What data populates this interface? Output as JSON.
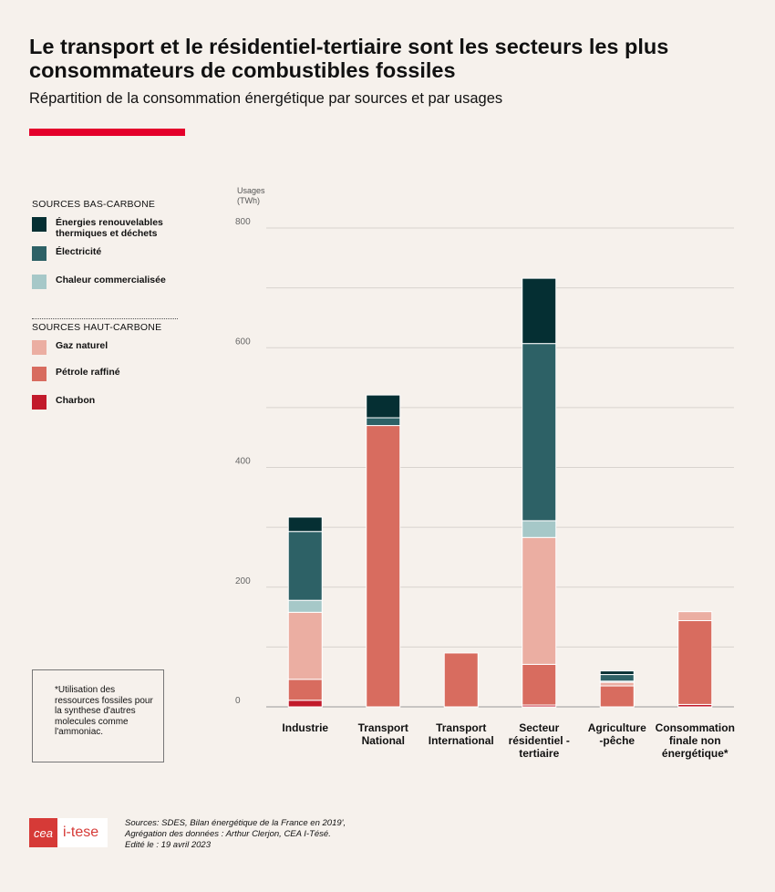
{
  "header": {
    "title": "Le transport et le résidentiel-tertiaire sont les secteurs les plus consommateurs de combustibles fossiles",
    "subtitle": "Répartition de la consommation énergétique par sources et par usages"
  },
  "legend": {
    "low_carbon_title": "SOURCES BAS-CARBONE",
    "high_carbon_title": "SOURCES HAUT-CARBONE",
    "items": [
      {
        "label": "Énergies renouvelables thermiques et déchets",
        "color": "#052f33",
        "icon": "square-swatch"
      },
      {
        "label": "Électricité",
        "color": "#2d6166",
        "icon": "square-swatch"
      },
      {
        "label": "Chaleur commercialisée",
        "color": "#a6c8c8",
        "icon": "square-swatch"
      },
      {
        "label": "Gaz naturel",
        "color": "#ebaea2",
        "icon": "square-swatch"
      },
      {
        "label": "Pétrole raffiné",
        "color": "#d86c5f",
        "icon": "square-swatch"
      },
      {
        "label": "Charbon",
        "color": "#c21a2b",
        "icon": "square-swatch"
      }
    ]
  },
  "note": "*Utilisation des ressources fossiles pour la synthese d'autres molecules comme l'ammoniac.",
  "footer": {
    "logo_cea": "cea",
    "logo_itese": "i-tese",
    "sources_line1": "Sources: SDES, Bilan énergétique de la France en 2019',",
    "sources_line2": "Agrégation des données : Arthur Clerjon, CEA I-Tésé.",
    "sources_line3": "Edité le : 19 avril 2023"
  },
  "accent_color": "#e4002b",
  "chart_data": {
    "type": "bar",
    "stacked": true,
    "ylabel": "Usages (TWh)",
    "ylim": [
      0,
      800
    ],
    "yticks": [
      0,
      200,
      400,
      600,
      800
    ],
    "grid": true,
    "legend_position": "left",
    "categories": [
      "Industrie",
      "Transport National",
      "Transport International",
      "Secteur résidentiel - tertiaire",
      "Agriculture -pêche",
      "Consommation finale non énergétique*"
    ],
    "series": [
      {
        "name": "Charbon",
        "color": "#c21a2b",
        "values": [
          11,
          0,
          0,
          3,
          0,
          4
        ]
      },
      {
        "name": "Pétrole raffiné",
        "color": "#d86c5f",
        "values": [
          35,
          470,
          90,
          68,
          35,
          140
        ]
      },
      {
        "name": "Gaz naturel",
        "color": "#ebaea2",
        "values": [
          112,
          0,
          0,
          212,
          6,
          15
        ]
      },
      {
        "name": "Chaleur commercialisée",
        "color": "#a6c8c8",
        "values": [
          20,
          0,
          0,
          28,
          2,
          0
        ]
      },
      {
        "name": "Électricité",
        "color": "#2d6166",
        "values": [
          115,
          13,
          0,
          296,
          11,
          0
        ]
      },
      {
        "name": "Énergies renouvelables thermiques et déchets",
        "color": "#052f33",
        "values": [
          24,
          38,
          0,
          109,
          6,
          0
        ]
      }
    ]
  }
}
